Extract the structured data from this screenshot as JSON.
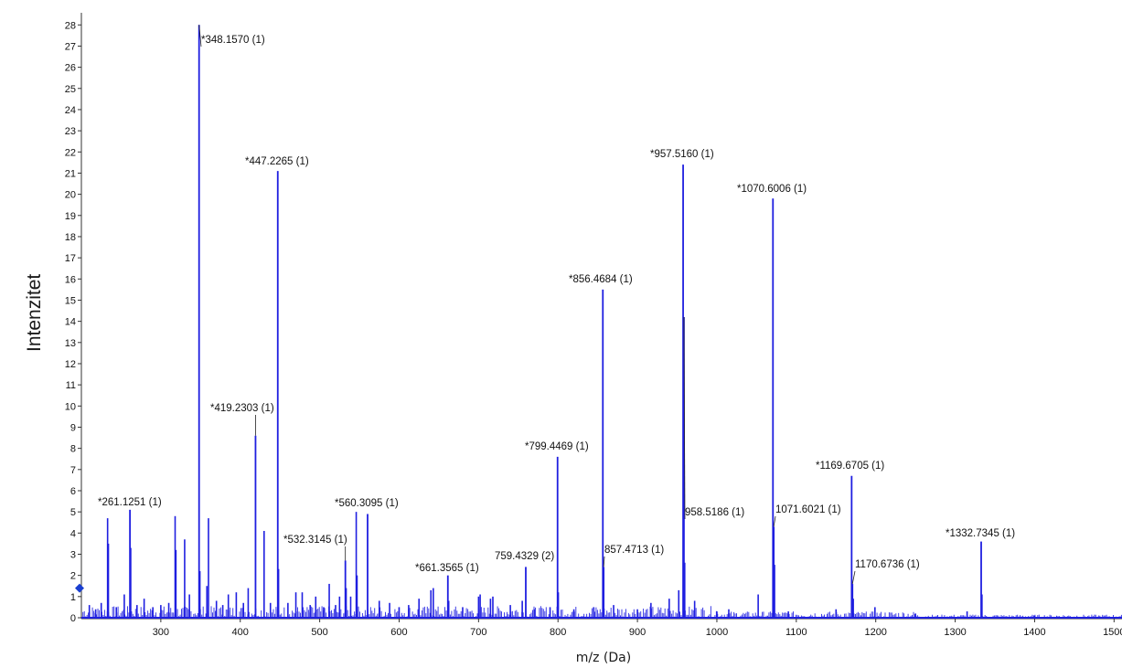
{
  "chart_data": {
    "type": "line",
    "xlabel": "m/z (Da)",
    "ylabel": "Intenzitet",
    "xlim": [
      200,
      1510
    ],
    "ylim": [
      0,
      28.4
    ],
    "x_ticks": [
      300,
      400,
      500,
      600,
      700,
      800,
      900,
      1000,
      1100,
      1200,
      1300,
      1400,
      1500
    ],
    "y_ticks": [
      0,
      1,
      2,
      3,
      4,
      5,
      6,
      7,
      8,
      9,
      10,
      11,
      12,
      13,
      14,
      15,
      16,
      17,
      18,
      19,
      20,
      21,
      22,
      23,
      24,
      25,
      26,
      27,
      28
    ],
    "series_color": "#1f1fe0",
    "labeled_peaks": [
      {
        "mz": 261.1251,
        "intensity": 5.1,
        "label": "*261.1251 (1)"
      },
      {
        "mz": 348.157,
        "intensity": 28.0,
        "label": "*348.1570 (1)"
      },
      {
        "mz": 419.2303,
        "intensity": 8.6,
        "label": "*419.2303 (1)"
      },
      {
        "mz": 447.2265,
        "intensity": 21.1,
        "label": "*447.2265 (1)"
      },
      {
        "mz": 532.3145,
        "intensity": 2.7,
        "label": "*532.3145 (1)"
      },
      {
        "mz": 560.3095,
        "intensity": 4.9,
        "label": "*560.3095 (1)"
      },
      {
        "mz": 661.3565,
        "intensity": 2.0,
        "label": "*661.3565 (1)"
      },
      {
        "mz": 759.4329,
        "intensity": 2.4,
        "label": "759.4329 (2)"
      },
      {
        "mz": 799.4469,
        "intensity": 7.6,
        "label": "*799.4469 (1)"
      },
      {
        "mz": 856.4684,
        "intensity": 15.5,
        "label": "*856.4684 (1)"
      },
      {
        "mz": 857.4713,
        "intensity": 2.4,
        "label": "857.4713 (1)"
      },
      {
        "mz": 957.516,
        "intensity": 21.4,
        "label": "*957.5160 (1)"
      },
      {
        "mz": 958.5186,
        "intensity": 14.2,
        "label": "958.5186 (1)"
      },
      {
        "mz": 1070.6006,
        "intensity": 19.8,
        "label": "*1070.6006 (1)"
      },
      {
        "mz": 1071.6021,
        "intensity": 4.3,
        "label": "1071.6021 (1)"
      },
      {
        "mz": 1169.6705,
        "intensity": 6.7,
        "label": "*1169.6705 (1)"
      },
      {
        "mz": 1170.6736,
        "intensity": 1.6,
        "label": "1170.6736 (1)"
      },
      {
        "mz": 1332.7345,
        "intensity": 3.6,
        "label": "*1332.7345 (1)"
      }
    ],
    "minor_peaks": [
      {
        "mz": 210,
        "intensity": 0.6
      },
      {
        "mz": 218,
        "intensity": 0.4
      },
      {
        "mz": 225,
        "intensity": 0.7
      },
      {
        "mz": 233,
        "intensity": 4.7
      },
      {
        "mz": 234,
        "intensity": 3.5
      },
      {
        "mz": 244,
        "intensity": 0.5
      },
      {
        "mz": 254,
        "intensity": 1.1
      },
      {
        "mz": 262.1,
        "intensity": 3.3
      },
      {
        "mz": 270,
        "intensity": 0.6
      },
      {
        "mz": 279,
        "intensity": 0.9
      },
      {
        "mz": 290,
        "intensity": 0.5
      },
      {
        "mz": 300,
        "intensity": 0.6
      },
      {
        "mz": 310,
        "intensity": 0.7
      },
      {
        "mz": 318,
        "intensity": 4.8
      },
      {
        "mz": 319,
        "intensity": 3.2
      },
      {
        "mz": 330,
        "intensity": 3.7
      },
      {
        "mz": 336,
        "intensity": 1.1
      },
      {
        "mz": 349.2,
        "intensity": 2.2
      },
      {
        "mz": 358,
        "intensity": 1.5
      },
      {
        "mz": 360,
        "intensity": 4.7
      },
      {
        "mz": 370,
        "intensity": 0.8
      },
      {
        "mz": 378,
        "intensity": 0.6
      },
      {
        "mz": 385,
        "intensity": 1.1
      },
      {
        "mz": 395,
        "intensity": 1.2
      },
      {
        "mz": 404,
        "intensity": 0.7
      },
      {
        "mz": 410,
        "intensity": 1.4
      },
      {
        "mz": 430,
        "intensity": 4.1
      },
      {
        "mz": 438,
        "intensity": 0.7
      },
      {
        "mz": 448.2,
        "intensity": 2.3
      },
      {
        "mz": 460,
        "intensity": 0.7
      },
      {
        "mz": 470,
        "intensity": 1.2
      },
      {
        "mz": 478,
        "intensity": 1.2
      },
      {
        "mz": 488,
        "intensity": 0.6
      },
      {
        "mz": 495,
        "intensity": 1.0
      },
      {
        "mz": 505,
        "intensity": 0.5
      },
      {
        "mz": 512,
        "intensity": 1.6
      },
      {
        "mz": 520,
        "intensity": 0.6
      },
      {
        "mz": 525,
        "intensity": 1.0
      },
      {
        "mz": 533.3,
        "intensity": 1.4
      },
      {
        "mz": 539,
        "intensity": 1.0
      },
      {
        "mz": 546,
        "intensity": 5.0
      },
      {
        "mz": 547,
        "intensity": 2.0
      },
      {
        "mz": 575,
        "intensity": 0.8
      },
      {
        "mz": 588,
        "intensity": 0.7
      },
      {
        "mz": 600,
        "intensity": 0.5
      },
      {
        "mz": 612,
        "intensity": 0.6
      },
      {
        "mz": 625,
        "intensity": 0.9
      },
      {
        "mz": 640,
        "intensity": 1.3
      },
      {
        "mz": 643,
        "intensity": 1.4
      },
      {
        "mz": 662.4,
        "intensity": 0.8
      },
      {
        "mz": 680,
        "intensity": 0.5
      },
      {
        "mz": 700,
        "intensity": 1.0
      },
      {
        "mz": 702,
        "intensity": 1.1
      },
      {
        "mz": 715,
        "intensity": 0.9
      },
      {
        "mz": 718,
        "intensity": 1.0
      },
      {
        "mz": 740,
        "intensity": 0.6
      },
      {
        "mz": 755,
        "intensity": 0.8
      },
      {
        "mz": 770,
        "intensity": 0.4
      },
      {
        "mz": 790,
        "intensity": 0.5
      },
      {
        "mz": 800.4,
        "intensity": 1.2
      },
      {
        "mz": 820,
        "intensity": 0.4
      },
      {
        "mz": 845,
        "intensity": 0.5
      },
      {
        "mz": 870,
        "intensity": 0.6
      },
      {
        "mz": 900,
        "intensity": 0.4
      },
      {
        "mz": 917,
        "intensity": 0.7
      },
      {
        "mz": 940,
        "intensity": 0.9
      },
      {
        "mz": 952,
        "intensity": 1.3
      },
      {
        "mz": 959.5,
        "intensity": 2.6
      },
      {
        "mz": 972,
        "intensity": 0.8
      },
      {
        "mz": 1000,
        "intensity": 0.3
      },
      {
        "mz": 1015,
        "intensity": 0.4
      },
      {
        "mz": 1052,
        "intensity": 1.1
      },
      {
        "mz": 1072.6,
        "intensity": 2.5
      },
      {
        "mz": 1090,
        "intensity": 0.3
      },
      {
        "mz": 1150,
        "intensity": 0.4
      },
      {
        "mz": 1171.7,
        "intensity": 0.9
      },
      {
        "mz": 1199,
        "intensity": 0.5
      },
      {
        "mz": 1250,
        "intensity": 0.2
      },
      {
        "mz": 1315,
        "intensity": 0.3
      },
      {
        "mz": 1333.7,
        "intensity": 1.1
      },
      {
        "mz": 1400,
        "intensity": 0.1
      }
    ]
  }
}
